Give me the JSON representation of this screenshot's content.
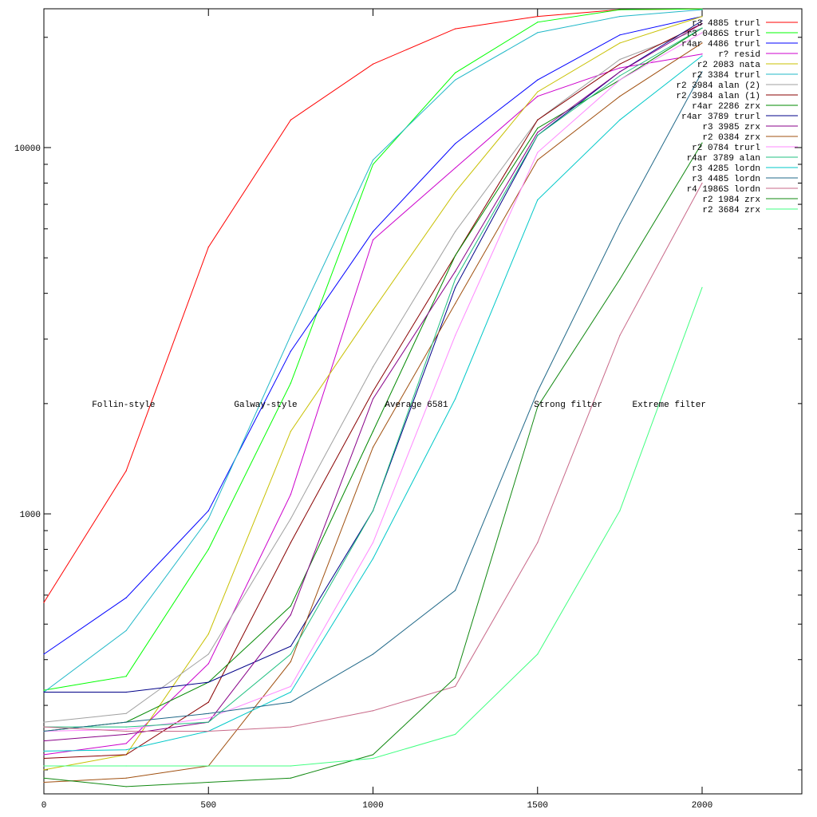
{
  "chart_data": {
    "type": "line",
    "title": "",
    "xlabel": "",
    "ylabel": "",
    "xlim": [
      0,
      2303
    ],
    "ylim": [
      172,
      23930
    ],
    "yscale": "log",
    "grid": false,
    "legend_position": "top-right",
    "x_ticks": [
      0,
      500,
      1000,
      1500,
      2000
    ],
    "x_tick_labels": [
      "0",
      "500",
      "1000",
      "1500",
      "2000"
    ],
    "y_ticks": [
      1000,
      10000
    ],
    "y_tick_labels": [
      "1000",
      "10000"
    ],
    "annotations": [
      {
        "text": "Follin-style",
        "x": 242,
        "y": 2000
      },
      {
        "text": "Galway-style",
        "x": 674,
        "y": 2000
      },
      {
        "text": "Average 6581",
        "x": 1132,
        "y": 2000
      },
      {
        "text": "Strong filter",
        "x": 1593,
        "y": 2000
      },
      {
        "text": "Extreme filter",
        "x": 1900,
        "y": 2000
      }
    ],
    "x": [
      0,
      250,
      500,
      750,
      1000,
      1250,
      1500,
      1750,
      2000
    ],
    "series": [
      {
        "name": "r3 4885 trurl",
        "color": "#ff0000",
        "values": [
          573,
          1310,
          5350,
          11900,
          16900,
          21100,
          22800,
          23800,
          23900
        ]
      },
      {
        "name": "r3 0486S trurl",
        "color": "#00ff00",
        "values": [
          330,
          360,
          800,
          2275,
          9000,
          16000,
          22000,
          23800,
          23900
        ]
      },
      {
        "name": "r4ar 4486 trurl",
        "color": "#0000ff",
        "values": [
          414,
          590,
          1020,
          2780,
          5900,
          10250,
          15300,
          20300,
          22800
        ]
      },
      {
        "name": "r? resid",
        "color": "#cc00cc",
        "values": [
          220,
          236,
          390,
          1130,
          5600,
          8800,
          13800,
          16500,
          18000
        ]
      },
      {
        "name": "r2 2083 nata",
        "color": "#c8c000",
        "values": [
          200,
          220,
          470,
          1680,
          3600,
          7570,
          14200,
          19300,
          22800
        ]
      },
      {
        "name": "r2 3384 trurl",
        "color": "#20b8c8",
        "values": [
          326,
          480,
          970,
          3070,
          9250,
          15300,
          20600,
          22800,
          23800
        ]
      },
      {
        "name": "r2 3984 alan (2)",
        "color": "#a0a0a0",
        "values": [
          270,
          285,
          414,
          970,
          2520,
          5900,
          11900,
          17400,
          21200
        ]
      },
      {
        "name": "r2 3984 alan (1)",
        "color": "#880000",
        "values": [
          215,
          220,
          306,
          835,
          2160,
          5070,
          11900,
          16900,
          21800
        ]
      },
      {
        "name": "r4ar 2286 zrx",
        "color": "#008800",
        "values": [
          255,
          270,
          347,
          560,
          1680,
          5070,
          11300,
          15300,
          21200
        ]
      },
      {
        "name": "r4ar 3789 trurl",
        "color": "#000088",
        "values": [
          326,
          326,
          347,
          435,
          1020,
          4150,
          10800,
          16100,
          22200
        ]
      },
      {
        "name": "r3 3985 zrx",
        "color": "#880088",
        "values": [
          240,
          250,
          270,
          530,
          2060,
          4590,
          11000,
          16100,
          21800
        ]
      },
      {
        "name": "r2 0384 zrx",
        "color": "#a05010",
        "values": [
          185,
          190,
          205,
          395,
          1520,
          3750,
          9250,
          13800,
          19300
        ]
      },
      {
        "name": "r2 0784 trurl",
        "color": "#ff88ff",
        "values": [
          255,
          258,
          277,
          338,
          835,
          3070,
          9700,
          15300,
          20600
        ]
      },
      {
        "name": "r4ar 3789 alan",
        "color": "#20c080",
        "values": [
          262,
          262,
          270,
          414,
          1020,
          4370,
          10800,
          15700,
          21200
        ]
      },
      {
        "name": "r3 4285 lordn",
        "color": "#00c8c8",
        "values": [
          225,
          227,
          255,
          326,
          755,
          2060,
          7200,
          11900,
          17800
        ]
      },
      {
        "name": "r3 4485 lordn",
        "color": "#206888",
        "values": [
          255,
          270,
          285,
          306,
          414,
          618,
          2160,
          6200,
          16100
        ]
      },
      {
        "name": "r4 1986S lordn",
        "color": "#c86888",
        "values": [
          262,
          255,
          255,
          262,
          290,
          338,
          835,
          3070,
          8000
        ]
      },
      {
        "name": "r2 1984 zrx",
        "color": "#108810",
        "values": [
          190,
          180,
          185,
          190,
          220,
          357,
          1960,
          4370,
          10300
        ]
      },
      {
        "name": "r2 3684 zrx",
        "color": "#40ff80",
        "values": [
          205,
          205,
          205,
          205,
          215,
          250,
          414,
          1020,
          4150
        ]
      }
    ]
  }
}
